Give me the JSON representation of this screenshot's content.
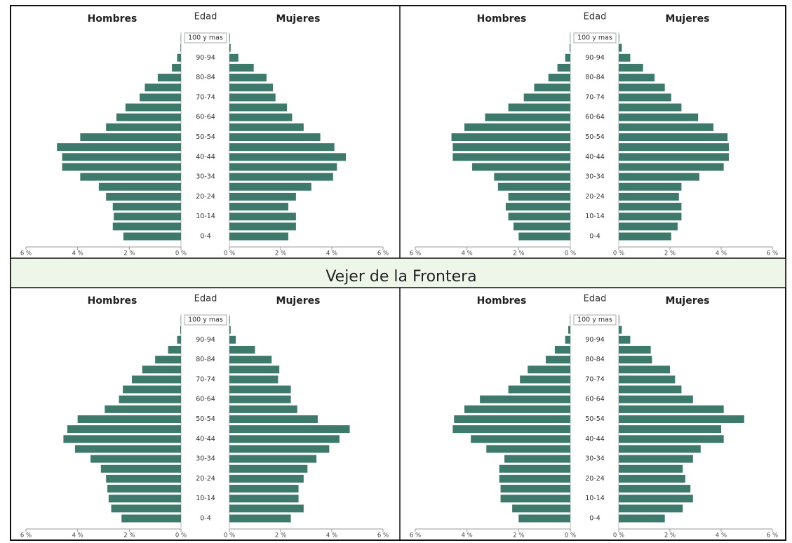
{
  "banner": "Vejer de la Frontera",
  "chart_data": [
    {
      "type": "pyramid",
      "ylabel": "Edad",
      "categories": [
        "0-4",
        null,
        "10-14",
        null,
        "20-24",
        null,
        "30-34",
        null,
        "40-44",
        null,
        "50-54",
        null,
        "60-64",
        null,
        "70-74",
        null,
        "80-84",
        null,
        "90-94",
        null,
        "100 y mas"
      ],
      "xlim": [
        0,
        6
      ],
      "xticks": [
        {
          "value": 0,
          "label": "0 %"
        },
        {
          "value": 2,
          "label": "2 %"
        },
        {
          "value": 4,
          "label": "4 %"
        },
        {
          "value": 6,
          "label": "6 %"
        }
      ],
      "series": [
        {
          "name": "Hombres",
          "color": "#3d7a6b",
          "values": [
            2.23,
            2.64,
            2.6,
            2.64,
            2.9,
            3.18,
            3.9,
            4.6,
            4.6,
            4.8,
            3.9,
            2.9,
            2.5,
            2.15,
            1.6,
            1.4,
            0.9,
            0.35,
            0.15,
            0.02,
            0.01
          ]
        },
        {
          "name": "Mujeres",
          "color": "#3d7a6b",
          "values": [
            2.3,
            2.6,
            2.6,
            2.3,
            2.6,
            3.2,
            4.05,
            4.2,
            4.55,
            4.1,
            3.55,
            2.9,
            2.45,
            2.25,
            1.8,
            1.7,
            1.45,
            0.95,
            0.35,
            0.05,
            0.02
          ]
        }
      ]
    },
    {
      "type": "pyramid",
      "ylabel": "Edad",
      "categories": [
        "0-4",
        null,
        "10-14",
        null,
        "20-24",
        null,
        "30-34",
        null,
        "40-44",
        null,
        "50-54",
        null,
        "60-64",
        null,
        "70-74",
        null,
        "80-84",
        null,
        "90-94",
        null,
        "100 y mas"
      ],
      "xlim": [
        0,
        6
      ],
      "xticks": [
        {
          "value": 0,
          "label": "0 %"
        },
        {
          "value": 2,
          "label": "2 %"
        },
        {
          "value": 4,
          "label": "4 %"
        },
        {
          "value": 6,
          "label": "6 %"
        }
      ],
      "series": [
        {
          "name": "Hombres",
          "color": "#3d7a6b",
          "values": [
            2.0,
            2.2,
            2.4,
            2.5,
            2.4,
            2.8,
            2.95,
            3.8,
            4.55,
            4.55,
            4.6,
            4.1,
            3.3,
            2.4,
            1.8,
            1.4,
            0.85,
            0.5,
            0.2,
            0.03,
            0.01
          ]
        },
        {
          "name": "Mujeres",
          "color": "#3d7a6b",
          "values": [
            2.05,
            2.3,
            2.45,
            2.45,
            2.35,
            2.45,
            3.15,
            4.1,
            4.3,
            4.3,
            4.25,
            3.7,
            3.1,
            2.45,
            2.05,
            1.8,
            1.4,
            0.95,
            0.45,
            0.12,
            0.02
          ]
        }
      ]
    },
    {
      "type": "pyramid",
      "ylabel": "Edad",
      "categories": [
        "0-4",
        null,
        "10-14",
        null,
        "20-24",
        null,
        "30-34",
        null,
        "40-44",
        null,
        "50-54",
        null,
        "60-64",
        null,
        "70-74",
        null,
        "80-84",
        null,
        "90-94",
        null,
        "100 y mas"
      ],
      "xlim": [
        0,
        6
      ],
      "xticks": [
        {
          "value": 0,
          "label": "0 %"
        },
        {
          "value": 2,
          "label": "2 %"
        },
        {
          "value": 4,
          "label": "4 %"
        },
        {
          "value": 6,
          "label": "6 %"
        }
      ],
      "series": [
        {
          "name": "Hombres",
          "color": "#3d7a6b",
          "values": [
            2.3,
            2.7,
            2.8,
            2.85,
            2.9,
            3.1,
            3.5,
            4.1,
            4.55,
            4.4,
            4.0,
            2.95,
            2.4,
            2.25,
            1.9,
            1.5,
            1.0,
            0.5,
            0.15,
            0.03,
            0.01
          ]
        },
        {
          "name": "Mujeres",
          "color": "#3d7a6b",
          "values": [
            2.4,
            2.9,
            2.7,
            2.7,
            2.9,
            3.05,
            3.4,
            3.9,
            4.3,
            4.7,
            3.45,
            2.65,
            2.4,
            2.4,
            1.9,
            1.95,
            1.65,
            1.0,
            0.25,
            0.05,
            0.02
          ]
        }
      ]
    },
    {
      "type": "pyramid",
      "ylabel": "Edad",
      "categories": [
        "0-4",
        null,
        "10-14",
        null,
        "20-24",
        null,
        "30-34",
        null,
        "40-44",
        null,
        "50-54",
        null,
        "60-64",
        null,
        "70-74",
        null,
        "80-84",
        null,
        "90-94",
        null,
        "100 y mas"
      ],
      "xlim": [
        0,
        6
      ],
      "xticks": [
        {
          "value": 0,
          "label": "0 %"
        },
        {
          "value": 2,
          "label": "2 %"
        },
        {
          "value": 4,
          "label": "4 %"
        },
        {
          "value": 6,
          "label": "6 %"
        }
      ],
      "series": [
        {
          "name": "Hombres",
          "color": "#3d7a6b",
          "values": [
            2.0,
            2.25,
            2.7,
            2.7,
            2.75,
            2.75,
            2.55,
            3.25,
            3.85,
            4.55,
            4.5,
            4.1,
            3.5,
            2.4,
            1.95,
            1.65,
            0.95,
            0.6,
            0.2,
            0.08,
            0.01
          ]
        },
        {
          "name": "Mujeres",
          "color": "#3d7a6b",
          "values": [
            1.8,
            2.5,
            2.9,
            2.8,
            2.6,
            2.5,
            2.9,
            3.2,
            4.1,
            4.0,
            4.9,
            4.1,
            2.9,
            2.45,
            2.2,
            2.0,
            1.3,
            1.25,
            0.45,
            0.12,
            0.02
          ]
        }
      ]
    }
  ]
}
